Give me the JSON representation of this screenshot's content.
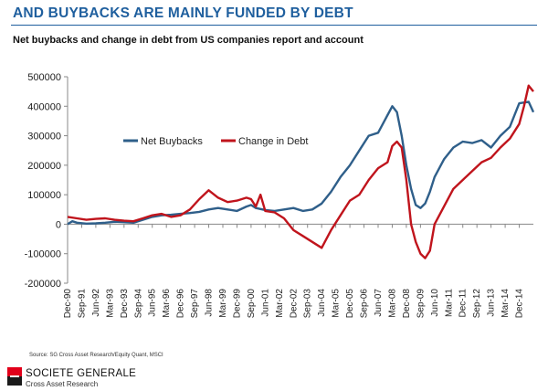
{
  "header": {
    "title": "AND BUYBACKS ARE MAINLY FUNDED BY DEBT",
    "subtitle": "Net buybacks and change in debt from US companies report and account"
  },
  "footer": {
    "source": "Source: SG Cross Asset Research/Equity Quant, MSCI",
    "brand_name": "SOCIETE GENERALE",
    "brand_sub": "Cross Asset Research"
  },
  "colors": {
    "accent": "#1f5f9e",
    "brand_red": "#e2001a"
  },
  "chart_data": {
    "type": "line",
    "title": "",
    "xlabel": "",
    "ylabel": "",
    "ylim": [
      -200000,
      500000
    ],
    "y_ticks": [
      500000,
      400000,
      300000,
      200000,
      100000,
      0,
      -100000,
      -200000
    ],
    "y_tick_labels": [
      "500000",
      "400000",
      "300000",
      "200000",
      "100000",
      "0",
      "-100000",
      "-200000"
    ],
    "x_tick_labels": [
      "Dec-90",
      "Sep-91",
      "Jun-92",
      "Mar-93",
      "Dec-93",
      "Sep-94",
      "Jun-95",
      "Mar-96",
      "Dec-96",
      "Sep-97",
      "Jun-98",
      "Mar-99",
      "Dec-99",
      "Sep-00",
      "Jun-01",
      "Mar-02",
      "Dec-02",
      "Sep-03",
      "Jun-04",
      "Mar-05",
      "Dec-05",
      "Sep-06",
      "Jun-07",
      "Mar-08",
      "Dec-08",
      "Sep-09",
      "Jun-10",
      "Mar-11",
      "Dec-11",
      "Sep-12",
      "Jun-13",
      "Mar-14",
      "Dec-14"
    ],
    "x_range": [
      "Dec-90",
      "Sep-15"
    ],
    "grid": false,
    "legend_position": "upper-left",
    "series": [
      {
        "name": "Net Buybacks",
        "color": "#2f5f8a",
        "points": [
          [
            "Dec-90",
            0
          ],
          [
            "Mar-91",
            10000
          ],
          [
            "Jun-91",
            5000
          ],
          [
            "Dec-91",
            2000
          ],
          [
            "Jun-92",
            3000
          ],
          [
            "Dec-92",
            5000
          ],
          [
            "Jun-93",
            8000
          ],
          [
            "Dec-93",
            7000
          ],
          [
            "Jun-94",
            5000
          ],
          [
            "Dec-94",
            15000
          ],
          [
            "Jun-95",
            25000
          ],
          [
            "Dec-95",
            30000
          ],
          [
            "Jun-96",
            32000
          ],
          [
            "Dec-96",
            35000
          ],
          [
            "Jun-97",
            38000
          ],
          [
            "Dec-97",
            42000
          ],
          [
            "Jun-98",
            50000
          ],
          [
            "Dec-98",
            55000
          ],
          [
            "Jun-99",
            50000
          ],
          [
            "Dec-99",
            45000
          ],
          [
            "Jun-00",
            60000
          ],
          [
            "Sep-00",
            65000
          ],
          [
            "Dec-00",
            55000
          ],
          [
            "Jun-01",
            48000
          ],
          [
            "Dec-01",
            45000
          ],
          [
            "Jun-02",
            50000
          ],
          [
            "Dec-02",
            55000
          ],
          [
            "Jun-03",
            45000
          ],
          [
            "Dec-03",
            50000
          ],
          [
            "Jun-04",
            70000
          ],
          [
            "Dec-04",
            110000
          ],
          [
            "Jun-05",
            160000
          ],
          [
            "Dec-05",
            200000
          ],
          [
            "Jun-06",
            250000
          ],
          [
            "Dec-06",
            300000
          ],
          [
            "Jun-07",
            310000
          ],
          [
            "Dec-07",
            370000
          ],
          [
            "Mar-08",
            400000
          ],
          [
            "Jun-08",
            380000
          ],
          [
            "Sep-08",
            300000
          ],
          [
            "Dec-08",
            200000
          ],
          [
            "Mar-09",
            120000
          ],
          [
            "Jun-09",
            65000
          ],
          [
            "Sep-09",
            55000
          ],
          [
            "Dec-09",
            70000
          ],
          [
            "Mar-10",
            110000
          ],
          [
            "Jun-10",
            160000
          ],
          [
            "Dec-10",
            220000
          ],
          [
            "Jun-11",
            260000
          ],
          [
            "Dec-11",
            280000
          ],
          [
            "Jun-12",
            275000
          ],
          [
            "Dec-12",
            285000
          ],
          [
            "Jun-13",
            260000
          ],
          [
            "Dec-13",
            300000
          ],
          [
            "Jun-14",
            330000
          ],
          [
            "Dec-14",
            410000
          ],
          [
            "Jun-15",
            415000
          ],
          [
            "Sep-15",
            380000
          ]
        ]
      },
      {
        "name": "Change in Debt",
        "color": "#c0141c",
        "points": [
          [
            "Dec-90",
            25000
          ],
          [
            "Jun-91",
            20000
          ],
          [
            "Dec-91",
            15000
          ],
          [
            "Jun-92",
            18000
          ],
          [
            "Dec-92",
            20000
          ],
          [
            "Jun-93",
            15000
          ],
          [
            "Dec-93",
            12000
          ],
          [
            "Jun-94",
            10000
          ],
          [
            "Dec-94",
            20000
          ],
          [
            "Jun-95",
            30000
          ],
          [
            "Dec-95",
            35000
          ],
          [
            "Jun-96",
            25000
          ],
          [
            "Dec-96",
            30000
          ],
          [
            "Jun-97",
            50000
          ],
          [
            "Dec-97",
            85000
          ],
          [
            "Jun-98",
            115000
          ],
          [
            "Dec-98",
            90000
          ],
          [
            "Jun-99",
            75000
          ],
          [
            "Dec-99",
            80000
          ],
          [
            "Jun-00",
            90000
          ],
          [
            "Sep-00",
            85000
          ],
          [
            "Dec-00",
            60000
          ],
          [
            "Mar-01",
            100000
          ],
          [
            "Jun-01",
            45000
          ],
          [
            "Dec-01",
            40000
          ],
          [
            "Jun-02",
            20000
          ],
          [
            "Dec-02",
            -20000
          ],
          [
            "Jun-03",
            -40000
          ],
          [
            "Dec-03",
            -60000
          ],
          [
            "Jun-04",
            -80000
          ],
          [
            "Dec-04",
            -20000
          ],
          [
            "Jun-05",
            30000
          ],
          [
            "Dec-05",
            80000
          ],
          [
            "Jun-06",
            100000
          ],
          [
            "Dec-06",
            150000
          ],
          [
            "Jun-07",
            190000
          ],
          [
            "Dec-07",
            210000
          ],
          [
            "Mar-08",
            265000
          ],
          [
            "Jun-08",
            280000
          ],
          [
            "Sep-08",
            260000
          ],
          [
            "Dec-08",
            150000
          ],
          [
            "Mar-09",
            0
          ],
          [
            "Jun-09",
            -60000
          ],
          [
            "Sep-09",
            -100000
          ],
          [
            "Dec-09",
            -115000
          ],
          [
            "Mar-10",
            -90000
          ],
          [
            "Jun-10",
            0
          ],
          [
            "Dec-10",
            60000
          ],
          [
            "Jun-11",
            120000
          ],
          [
            "Dec-11",
            150000
          ],
          [
            "Jun-12",
            180000
          ],
          [
            "Dec-12",
            210000
          ],
          [
            "Jun-13",
            225000
          ],
          [
            "Dec-13",
            260000
          ],
          [
            "Jun-14",
            290000
          ],
          [
            "Dec-14",
            340000
          ],
          [
            "Mar-15",
            400000
          ],
          [
            "Jun-15",
            470000
          ],
          [
            "Sep-15",
            450000
          ]
        ]
      }
    ]
  }
}
